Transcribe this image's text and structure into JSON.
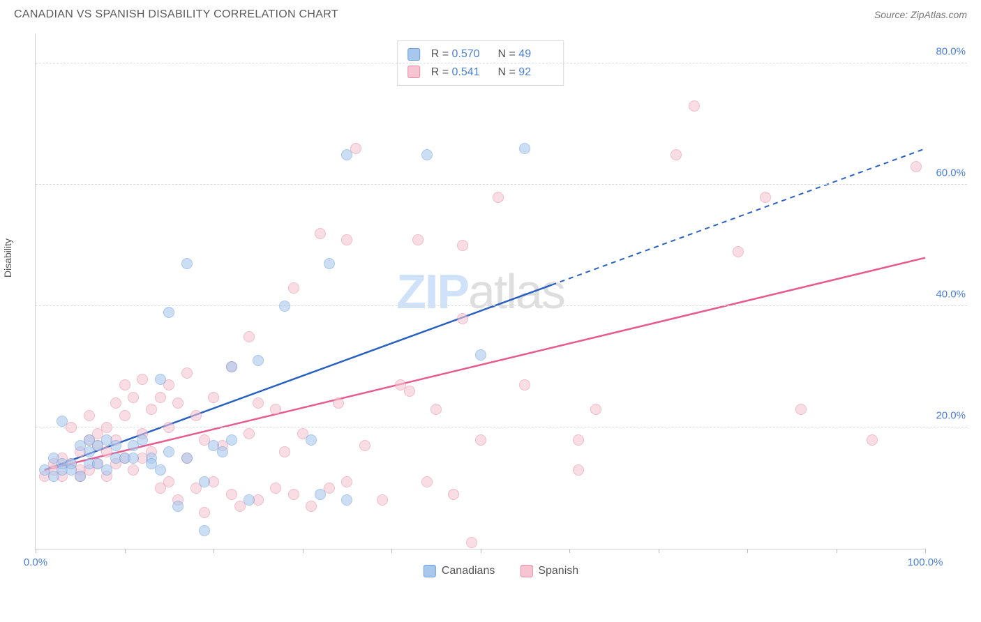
{
  "header": {
    "title": "CANADIAN VS SPANISH DISABILITY CORRELATION CHART",
    "source": "Source: ZipAtlas.com"
  },
  "chart": {
    "type": "scatter",
    "y_axis_label": "Disability",
    "watermark_text_a": "ZIP",
    "watermark_text_b": "atlas",
    "xlim": [
      0,
      100
    ],
    "ylim": [
      0,
      85
    ],
    "y_ticks": [
      20,
      40,
      60,
      80
    ],
    "y_tick_labels": [
      "20.0%",
      "40.0%",
      "60.0%",
      "80.0%"
    ],
    "x_ticks": [
      0,
      10,
      20,
      30,
      40,
      50,
      60,
      70,
      80,
      90,
      100
    ],
    "x_labels": {
      "min": "0.0%",
      "max": "100.0%"
    },
    "grid_color": "#dcdcdc",
    "axis_color": "#d0d0d0",
    "tick_label_color": "#4a7fd6",
    "background_color": "#ffffff",
    "point_radius": 8,
    "point_opacity": 0.58,
    "series": {
      "canadians": {
        "label": "Canadians",
        "fill_color": "#a7c7ed",
        "stroke_color": "#6a9fde",
        "trend_color": "#2860c2",
        "trend_solid_end_x": 58,
        "trend": {
          "x1": 1,
          "y1": 13,
          "x2": 100,
          "y2": 66
        },
        "R": "0.570",
        "N": "49",
        "points": [
          [
            1,
            13
          ],
          [
            2,
            12
          ],
          [
            2,
            15
          ],
          [
            3,
            13
          ],
          [
            3,
            14
          ],
          [
            3,
            21
          ],
          [
            4,
            14
          ],
          [
            4,
            13
          ],
          [
            5,
            17
          ],
          [
            5,
            12
          ],
          [
            6,
            14
          ],
          [
            6,
            18
          ],
          [
            6,
            16
          ],
          [
            7,
            14
          ],
          [
            7,
            17
          ],
          [
            8,
            13
          ],
          [
            8,
            18
          ],
          [
            9,
            15
          ],
          [
            9,
            17
          ],
          [
            10,
            15
          ],
          [
            11,
            15
          ],
          [
            11,
            17
          ],
          [
            12,
            18
          ],
          [
            13,
            15
          ],
          [
            13,
            14
          ],
          [
            14,
            13
          ],
          [
            14,
            28
          ],
          [
            15,
            39
          ],
          [
            15,
            16
          ],
          [
            16,
            7
          ],
          [
            17,
            47
          ],
          [
            17,
            15
          ],
          [
            19,
            3
          ],
          [
            19,
            11
          ],
          [
            20,
            17
          ],
          [
            21,
            16
          ],
          [
            22,
            30
          ],
          [
            22,
            18
          ],
          [
            24,
            8
          ],
          [
            25,
            31
          ],
          [
            28,
            40
          ],
          [
            31,
            18
          ],
          [
            32,
            9
          ],
          [
            33,
            47
          ],
          [
            35,
            65
          ],
          [
            35,
            8
          ],
          [
            44,
            65
          ],
          [
            50,
            32
          ],
          [
            55,
            66
          ]
        ]
      },
      "spanish": {
        "label": "Spanish",
        "fill_color": "#f6c5d1",
        "stroke_color": "#e88ba5",
        "trend_color": "#e75a8e",
        "trend_solid_end_x": 100,
        "trend": {
          "x1": 1,
          "y1": 13,
          "x2": 100,
          "y2": 48
        },
        "R": "0.541",
        "N": "92",
        "points": [
          [
            1,
            12
          ],
          [
            2,
            13
          ],
          [
            2,
            14
          ],
          [
            3,
            12
          ],
          [
            3,
            15
          ],
          [
            4,
            14
          ],
          [
            4,
            20
          ],
          [
            5,
            13
          ],
          [
            5,
            12
          ],
          [
            5,
            16
          ],
          [
            6,
            18
          ],
          [
            6,
            13
          ],
          [
            6,
            22
          ],
          [
            7,
            14
          ],
          [
            7,
            17
          ],
          [
            7,
            19
          ],
          [
            8,
            12
          ],
          [
            8,
            16
          ],
          [
            8,
            20
          ],
          [
            9,
            14
          ],
          [
            9,
            18
          ],
          [
            9,
            24
          ],
          [
            10,
            15
          ],
          [
            10,
            22
          ],
          [
            10,
            27
          ],
          [
            11,
            13
          ],
          [
            11,
            25
          ],
          [
            12,
            15
          ],
          [
            12,
            19
          ],
          [
            12,
            28
          ],
          [
            13,
            16
          ],
          [
            13,
            23
          ],
          [
            14,
            10
          ],
          [
            14,
            25
          ],
          [
            15,
            11
          ],
          [
            15,
            20
          ],
          [
            15,
            27
          ],
          [
            16,
            8
          ],
          [
            16,
            24
          ],
          [
            17,
            15
          ],
          [
            17,
            29
          ],
          [
            18,
            10
          ],
          [
            18,
            22
          ],
          [
            19,
            18
          ],
          [
            19,
            6
          ],
          [
            20,
            25
          ],
          [
            20,
            11
          ],
          [
            21,
            17
          ],
          [
            22,
            9
          ],
          [
            22,
            30
          ],
          [
            23,
            7
          ],
          [
            24,
            19
          ],
          [
            24,
            35
          ],
          [
            25,
            8
          ],
          [
            25,
            24
          ],
          [
            27,
            10
          ],
          [
            27,
            23
          ],
          [
            28,
            16
          ],
          [
            29,
            43
          ],
          [
            29,
            9
          ],
          [
            30,
            19
          ],
          [
            31,
            7
          ],
          [
            32,
            52
          ],
          [
            33,
            10
          ],
          [
            34,
            24
          ],
          [
            35,
            11
          ],
          [
            35,
            51
          ],
          [
            36,
            66
          ],
          [
            37,
            17
          ],
          [
            39,
            8
          ],
          [
            41,
            27
          ],
          [
            42,
            26
          ],
          [
            43,
            51
          ],
          [
            44,
            11
          ],
          [
            45,
            23
          ],
          [
            47,
            9
          ],
          [
            48,
            38
          ],
          [
            48,
            50
          ],
          [
            49,
            1
          ],
          [
            50,
            18
          ],
          [
            52,
            58
          ],
          [
            55,
            27
          ],
          [
            61,
            13
          ],
          [
            61,
            18
          ],
          [
            63,
            23
          ],
          [
            72,
            65
          ],
          [
            74,
            73
          ],
          [
            79,
            49
          ],
          [
            82,
            58
          ],
          [
            86,
            23
          ],
          [
            94,
            18
          ],
          [
            99,
            63
          ]
        ]
      }
    },
    "stats_legend": {
      "R_label": "R =",
      "N_label": "N ="
    }
  }
}
